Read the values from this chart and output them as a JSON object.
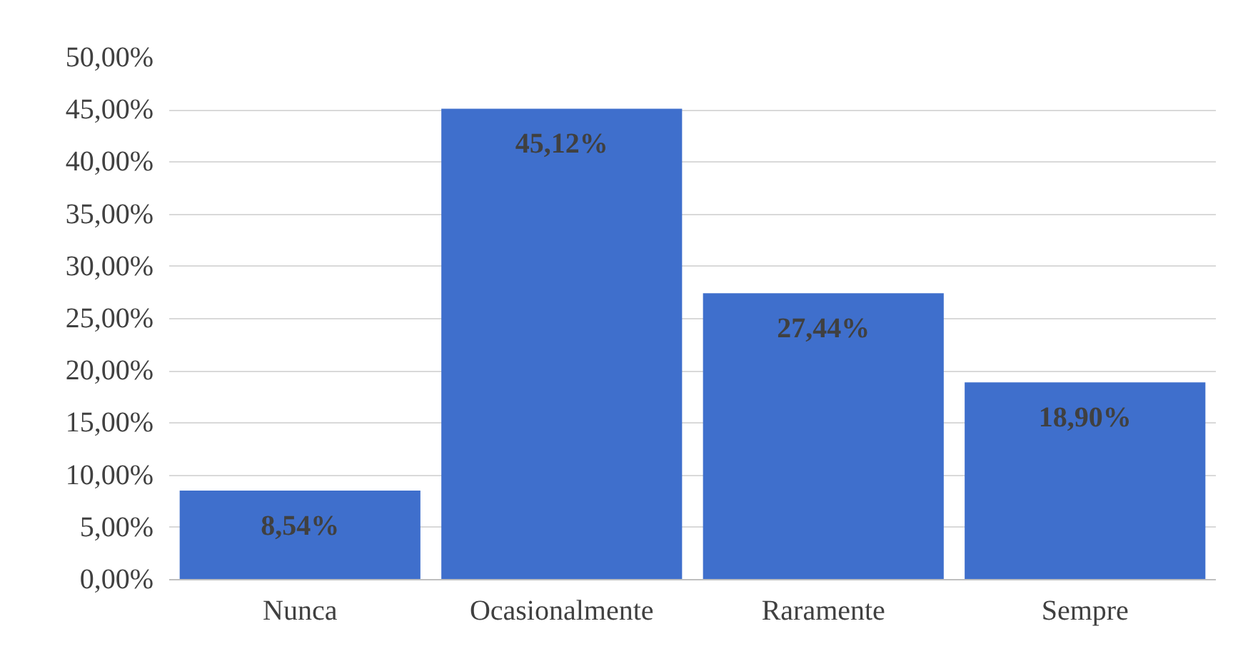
{
  "chart_data": {
    "type": "bar",
    "categories": [
      "Nunca",
      "Ocasionalmente",
      "Raramente",
      "Sempre"
    ],
    "values": [
      8.54,
      45.12,
      27.44,
      18.9
    ],
    "value_labels": [
      "8,54%",
      "45,12%",
      "27,44%",
      "18,90%"
    ],
    "color": "#3f6fcc",
    "ylim": [
      0,
      50
    ],
    "yticks": [
      {
        "value": 0,
        "label": "0,00%"
      },
      {
        "value": 5,
        "label": "5,00%"
      },
      {
        "value": 10,
        "label": "10,00%"
      },
      {
        "value": 15,
        "label": "15,00%"
      },
      {
        "value": 20,
        "label": "20,00%"
      },
      {
        "value": 25,
        "label": "25,00%"
      },
      {
        "value": 30,
        "label": "30,00%"
      },
      {
        "value": 35,
        "label": "35,00%"
      },
      {
        "value": 40,
        "label": "40,00%"
      },
      {
        "value": 45,
        "label": "45,00%"
      },
      {
        "value": 50,
        "label": "50,00%"
      }
    ],
    "grid": "y"
  }
}
